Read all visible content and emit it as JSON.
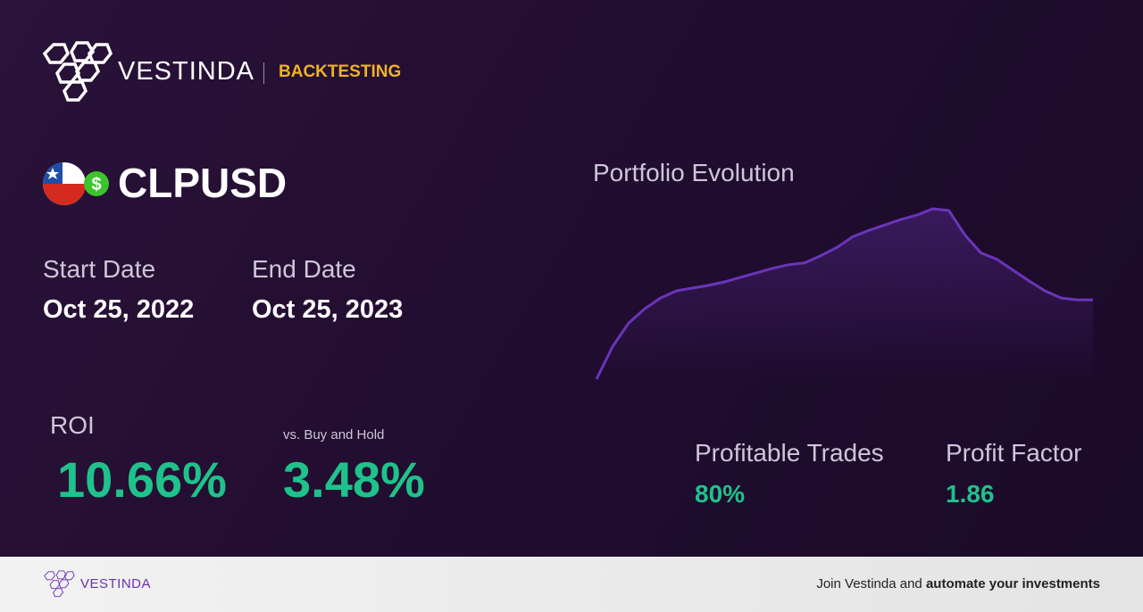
{
  "header": {
    "brand": "VESTINDA",
    "section": "BACKTESTING"
  },
  "pair": "CLPUSD",
  "dates": {
    "start_label": "Start Date",
    "start": "Oct 25, 2022",
    "end_label": "End Date",
    "end": "Oct 25, 2023"
  },
  "roi": {
    "label": "ROI",
    "value": "10.66%",
    "vs_label": "vs. Buy and Hold",
    "vs_value": "3.48%"
  },
  "stats": [
    {
      "label": "Profitable Trades",
      "value": "80%"
    },
    {
      "label": "Profit Factor",
      "value": "1.86"
    }
  ],
  "chart_data": {
    "type": "line",
    "title": "Portfolio Evolution",
    "color": "#6a35b8",
    "values": [
      0,
      36,
      62,
      78,
      90,
      98,
      101,
      104,
      108,
      113,
      118,
      123,
      127,
      129,
      137,
      146,
      158,
      165,
      171,
      177,
      182,
      189,
      187,
      160,
      140,
      133,
      121,
      109,
      98,
      90,
      88,
      88
    ]
  },
  "footer": {
    "brand": "VESTINDA",
    "cta_plain": "Join Vestinda and",
    "cta_bold": "automate your investments"
  }
}
